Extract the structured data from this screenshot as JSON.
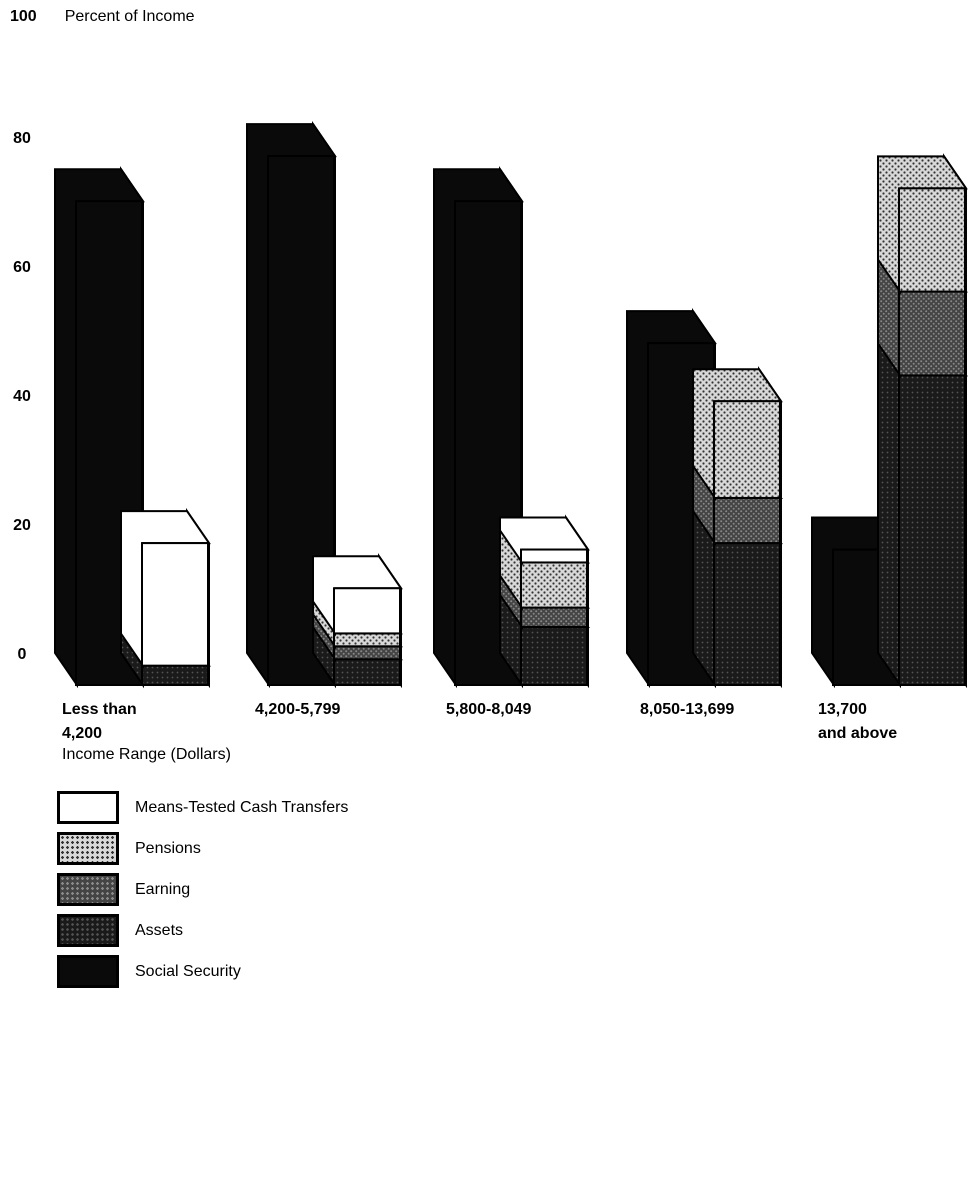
{
  "chart_data": {
    "type": "bar",
    "title": "Percent of Income",
    "xlabel": "Income Range (Dollars)",
    "ylabel": "Percent of Income",
    "ylim": [
      0,
      100
    ],
    "yticks": [
      "0",
      "20",
      "40",
      "60",
      "80",
      "100"
    ],
    "grid": false,
    "legend_position": "bottom-left",
    "categories": [
      [
        "Less than",
        "4,200"
      ],
      [
        "4,200-5,799"
      ],
      [
        "5,800-8,049"
      ],
      [
        "8,050-13,699"
      ],
      [
        "13,700",
        "and above"
      ]
    ],
    "series": [
      {
        "name": "Social Security",
        "values": [
          75,
          82,
          75,
          53,
          21
        ]
      },
      {
        "name": "Assets",
        "values": [
          3,
          4,
          9,
          22,
          48
        ]
      },
      {
        "name": "Earning",
        "values": [
          0,
          2,
          3,
          7,
          13
        ]
      },
      {
        "name": "Pensions",
        "values": [
          0,
          2,
          7,
          15,
          16
        ]
      },
      {
        "name": "Means-Tested Cash Transfers",
        "values": [
          19,
          7,
          2,
          0,
          0
        ]
      }
    ],
    "series_layout": "Social Security drawn as a separate bar; other sources stacked in a second bar",
    "colors": {
      "Social Security": "#0a0a0a",
      "Assets": "#333333",
      "Earning": "#5a5a5a",
      "Pensions": "#a8a8a8",
      "Means-Tested Cash Transfers": "#ffffff"
    }
  },
  "legend": [
    {
      "label": "Means-Tested Cash Transfers",
      "pattern": "white"
    },
    {
      "label": "Pensions",
      "pattern": "light-dots"
    },
    {
      "label": "Earning",
      "pattern": "medium-dots"
    },
    {
      "label": "Assets",
      "pattern": "dark-dots"
    },
    {
      "label": "Social Security",
      "pattern": "solid-black"
    }
  ]
}
